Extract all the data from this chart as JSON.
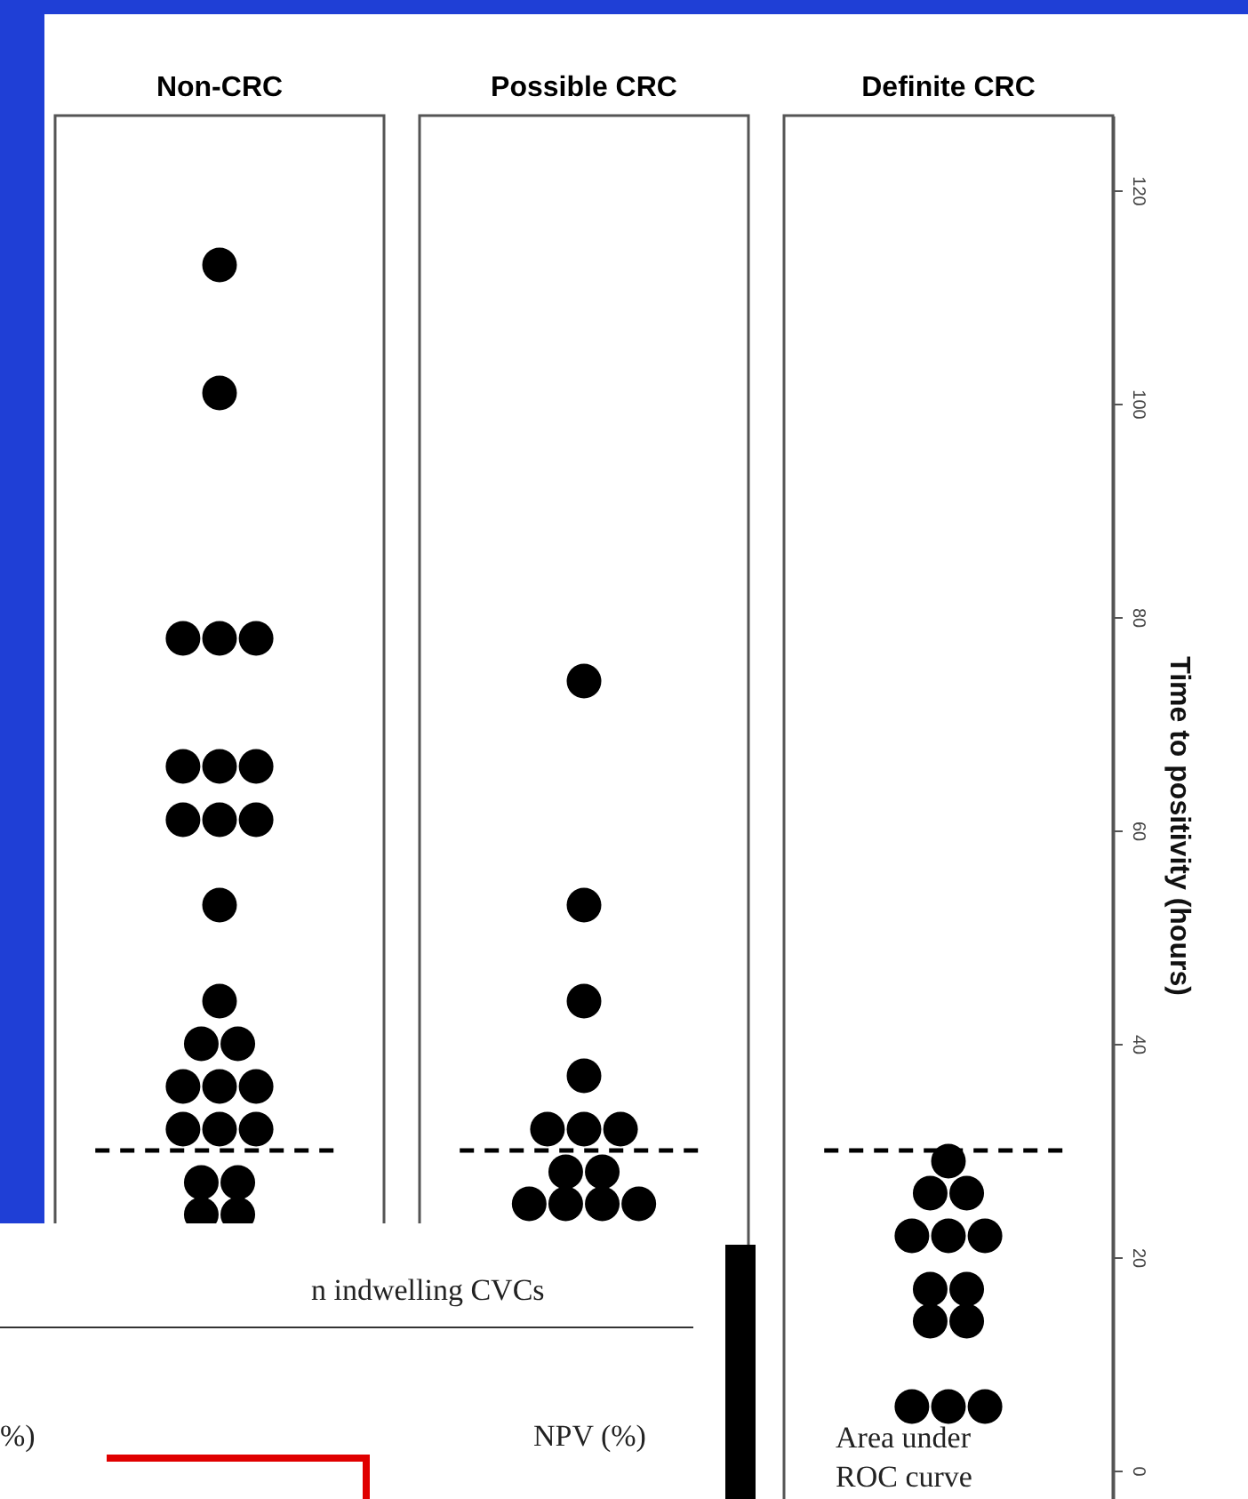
{
  "chart_data": {
    "type": "scatter",
    "categories": [
      "Non-CRC",
      "Possible CRC",
      "Definite CRC"
    ],
    "ylabel": "Time to positivity (hours)",
    "ylim": [
      -6,
      127
    ],
    "yticks": [
      0,
      20,
      40,
      60,
      80,
      100,
      120
    ],
    "marker": "circle",
    "grid": false,
    "series": [
      {
        "color": "#000000",
        "x": [
          "Non-CRC",
          "Non-CRC",
          "Non-CRC",
          "Non-CRC",
          "Non-CRC",
          "Non-CRC",
          "Non-CRC",
          "Non-CRC",
          "Non-CRC",
          "Non-CRC",
          "Non-CRC",
          "Non-CRC",
          "Non-CRC",
          "Non-CRC",
          "Non-CRC",
          "Non-CRC",
          "Non-CRC",
          "Non-CRC",
          "Non-CRC",
          "Non-CRC",
          "Non-CRC",
          "Non-CRC",
          "Non-CRC",
          "Non-CRC",
          "Non-CRC",
          "Non-CRC",
          "Non-CRC",
          "Non-CRC",
          "Non-CRC",
          "Possible CRC",
          "Possible CRC",
          "Possible CRC",
          "Possible CRC",
          "Possible CRC",
          "Possible CRC",
          "Possible CRC",
          "Possible CRC",
          "Possible CRC",
          "Possible CRC",
          "Possible CRC",
          "Possible CRC",
          "Possible CRC",
          "Possible CRC",
          "Definite CRC",
          "Definite CRC",
          "Definite CRC",
          "Definite CRC",
          "Definite CRC",
          "Definite CRC",
          "Definite CRC",
          "Definite CRC",
          "Definite CRC",
          "Definite CRC",
          "Definite CRC",
          "Definite CRC",
          "Definite CRC"
        ],
        "values": [
          113,
          101,
          78,
          78,
          78,
          66,
          66,
          66,
          61,
          61,
          61,
          53,
          44,
          40,
          40,
          36,
          36,
          36,
          32,
          32,
          32,
          27,
          27,
          24,
          24,
          null,
          null,
          null,
          null,
          74,
          53,
          44,
          37,
          32,
          32,
          32,
          28,
          28,
          25,
          25,
          25,
          25,
          null,
          29,
          26,
          26,
          22,
          22,
          22,
          17,
          17,
          14,
          14,
          6,
          6,
          6
        ]
      }
    ],
    "ref_lines": [
      {
        "axis": "y",
        "value": 30,
        "line_style": "dashed"
      }
    ],
    "annotations": [
      "n indwelling CVCs",
      "%)",
      "NPV (%)",
      "Area under ROC curve"
    ]
  }
}
